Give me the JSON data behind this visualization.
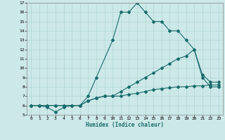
{
  "xlabel": "Humidex (Indice chaleur)",
  "background_color": "#cce8e8",
  "grid_color": "#aacfcf",
  "line_color": "#1a6b6b",
  "markersize": 2.0,
  "linewidth": 0.8,
  "xlim": [
    -0.5,
    23.5
  ],
  "ylim": [
    5,
    17
  ],
  "xticks": [
    0,
    1,
    2,
    3,
    4,
    5,
    6,
    7,
    8,
    9,
    10,
    11,
    12,
    13,
    14,
    15,
    16,
    17,
    18,
    19,
    20,
    21,
    22,
    23
  ],
  "yticks": [
    5,
    6,
    7,
    8,
    9,
    10,
    11,
    12,
    13,
    14,
    15,
    16,
    17
  ],
  "xtick_labels": [
    "0",
    "1",
    "2",
    "3",
    "4",
    "5",
    "6",
    "7",
    "8",
    "9",
    "10",
    "11",
    "12",
    "13",
    "14",
    "15",
    "16",
    "17",
    "18",
    "19",
    "20",
    "21",
    "22",
    "23"
  ],
  "series": [
    {
      "x": [
        0,
        1,
        2,
        3,
        4,
        5,
        6,
        7,
        8,
        10,
        11,
        12,
        13,
        14,
        15,
        16,
        17,
        18,
        19,
        20,
        21,
        22,
        23
      ],
      "y": [
        6,
        6,
        6,
        6,
        6,
        6,
        6,
        7,
        9,
        13,
        16,
        16,
        17,
        16,
        15,
        15,
        14,
        14,
        13,
        12,
        9,
        8,
        8
      ]
    },
    {
      "x": [
        0,
        1,
        2,
        3,
        4,
        5,
        6,
        7,
        8,
        9,
        10,
        11,
        12,
        13,
        14,
        15,
        16,
        17,
        18,
        19,
        20,
        21,
        22,
        23
      ],
      "y": [
        6,
        6,
        6,
        6,
        6,
        6,
        6,
        6.5,
        6.8,
        7,
        7,
        7,
        7.2,
        7.3,
        7.5,
        7.7,
        7.8,
        7.9,
        8,
        8,
        8.1,
        8.1,
        8.2,
        8.2
      ]
    },
    {
      "x": [
        0,
        1,
        2,
        3,
        4,
        5,
        6,
        7,
        8,
        9,
        10,
        11,
        12,
        13,
        14,
        15,
        16,
        17,
        18,
        19,
        20,
        21,
        22,
        23
      ],
      "y": [
        6,
        6,
        5.8,
        5.3,
        5.8,
        6,
        6,
        6.5,
        6.8,
        7,
        7,
        7.5,
        8,
        8.5,
        9,
        9.5,
        10,
        10.5,
        11,
        11.3,
        12,
        9.3,
        8.5,
        8.5
      ]
    }
  ]
}
